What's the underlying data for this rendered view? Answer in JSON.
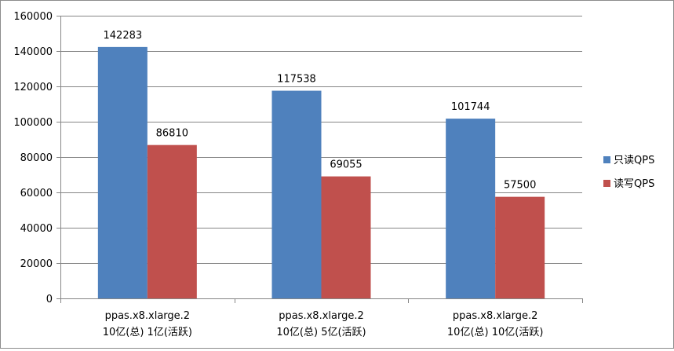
{
  "chart_data": {
    "type": "bar",
    "categories": [
      [
        "ppas.x8.xlarge.2",
        "10亿(总) 1亿(活跃)"
      ],
      [
        "ppas.x8.xlarge.2",
        "10亿(总) 5亿(活跃)"
      ],
      [
        "ppas.x8.xlarge.2",
        "10亿(总) 10亿(活跃)"
      ]
    ],
    "series": [
      {
        "name": "只读QPS",
        "color": "#4f81bd",
        "values": [
          142283,
          117538,
          101744
        ]
      },
      {
        "name": "读写QPS",
        "color": "#c0504d",
        "values": [
          86810,
          69055,
          57500
        ]
      }
    ],
    "ylim": [
      0,
      160000
    ],
    "yticks": [
      0,
      20000,
      40000,
      60000,
      80000,
      100000,
      120000,
      140000,
      160000
    ],
    "grid": true,
    "legend_position": "right",
    "title": "",
    "xlabel": "",
    "ylabel": ""
  }
}
